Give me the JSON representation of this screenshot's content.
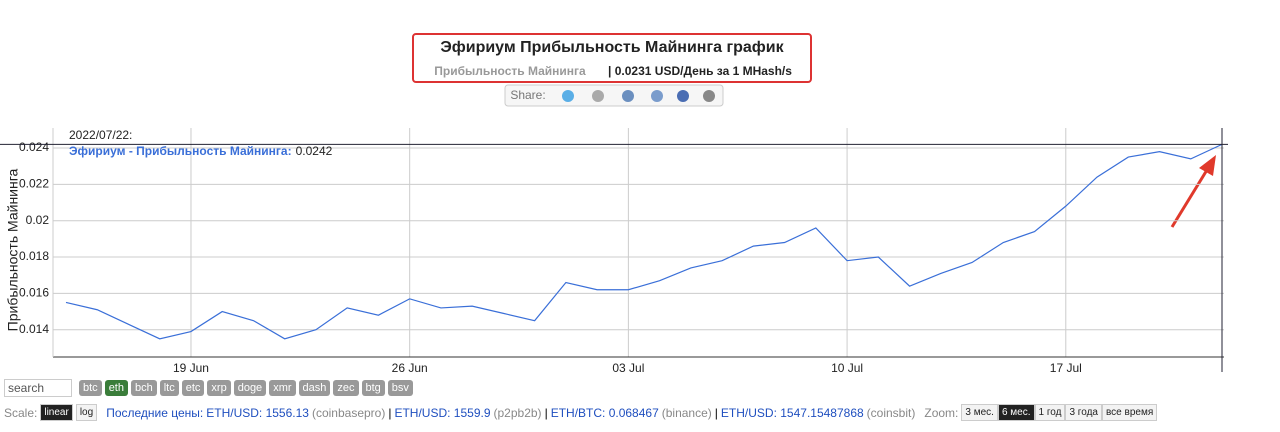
{
  "header": {
    "title": "Эфириум Прибыльность Майнинга график",
    "subtitle_label": "Прибыльность Майнинга",
    "subtitle_value": "| 0.0231 USD/День за 1 MHash/s",
    "share": "Share:"
  },
  "chart_data": {
    "type": "line",
    "ylabel": "Прибыльность Майнинга",
    "x": [
      "2022-06-15",
      "2022-06-16",
      "2022-06-17",
      "2022-06-18",
      "2022-06-19",
      "2022-06-20",
      "2022-06-21",
      "2022-06-22",
      "2022-06-23",
      "2022-06-24",
      "2022-06-25",
      "2022-06-26",
      "2022-06-27",
      "2022-06-28",
      "2022-06-29",
      "2022-06-30",
      "2022-07-01",
      "2022-07-02",
      "2022-07-03",
      "2022-07-04",
      "2022-07-05",
      "2022-07-06",
      "2022-07-07",
      "2022-07-08",
      "2022-07-09",
      "2022-07-10",
      "2022-07-11",
      "2022-07-12",
      "2022-07-13",
      "2022-07-14",
      "2022-07-15",
      "2022-07-16",
      "2022-07-17",
      "2022-07-18",
      "2022-07-19",
      "2022-07-20",
      "2022-07-21",
      "2022-07-22"
    ],
    "series": [
      {
        "name": "Эфириум - Прибыльность Майнинга:",
        "color": "#3a6fd8",
        "values": [
          0.0155,
          0.0151,
          0.0143,
          0.0135,
          0.0139,
          0.015,
          0.0145,
          0.0135,
          0.014,
          0.0152,
          0.0148,
          0.0157,
          0.0152,
          0.0153,
          0.0149,
          0.0145,
          0.0166,
          0.0162,
          0.0162,
          0.0167,
          0.0174,
          0.0178,
          0.0186,
          0.0188,
          0.0196,
          0.0178,
          0.018,
          0.0164,
          0.0171,
          0.0177,
          0.0188,
          0.0194,
          0.0208,
          0.0224,
          0.0235,
          0.0238,
          0.0234,
          0.0242
        ]
      }
    ],
    "xlim": [
      "2022-06-15",
      "2022-07-22"
    ],
    "xticks": [
      {
        "value": "2022-06-19",
        "label": "19 Jun"
      },
      {
        "value": "2022-06-26",
        "label": "26 Jun"
      },
      {
        "value": "2022-07-03",
        "label": "03 Jul"
      },
      {
        "value": "2022-07-10",
        "label": "10 Jul"
      },
      {
        "value": "2022-07-17",
        "label": "17 Jul"
      }
    ],
    "ylim": [
      0.0125,
      0.0251
    ],
    "yticks": [
      0.014,
      0.016,
      0.018,
      0.02,
      0.022,
      0.024
    ],
    "grid": true,
    "tooltip_date": "2022/07/22:"
  },
  "controls": {
    "search": "search",
    "coins": [
      "btc",
      "eth",
      "bch",
      "ltc",
      "etc",
      "xrp",
      "doge",
      "xmr",
      "dash",
      "zec",
      "btg",
      "bsv"
    ],
    "active_coin": "eth",
    "scale_label": "Scale:",
    "scales": [
      "linear",
      "log"
    ],
    "prices_label": "Последние цены:",
    "separator": "|",
    "prices": [
      {
        "pair": "ETH/USD: 1556.13",
        "source": "(coinbasepro)"
      },
      {
        "pair": "ETH/USD: 1559.9",
        "source": "(p2pb2b)"
      },
      {
        "pair": "ETH/BTC: 0.068467",
        "source": "(binance)"
      },
      {
        "pair": "ETH/USD: 1547.15487868",
        "source": "(coinsbit)"
      }
    ],
    "zoom_label": "Zoom:",
    "zooms": [
      "3 мес.",
      "6 мес.",
      "1 год",
      "3 года",
      "все время"
    ],
    "active_zoom": "6 мес."
  }
}
